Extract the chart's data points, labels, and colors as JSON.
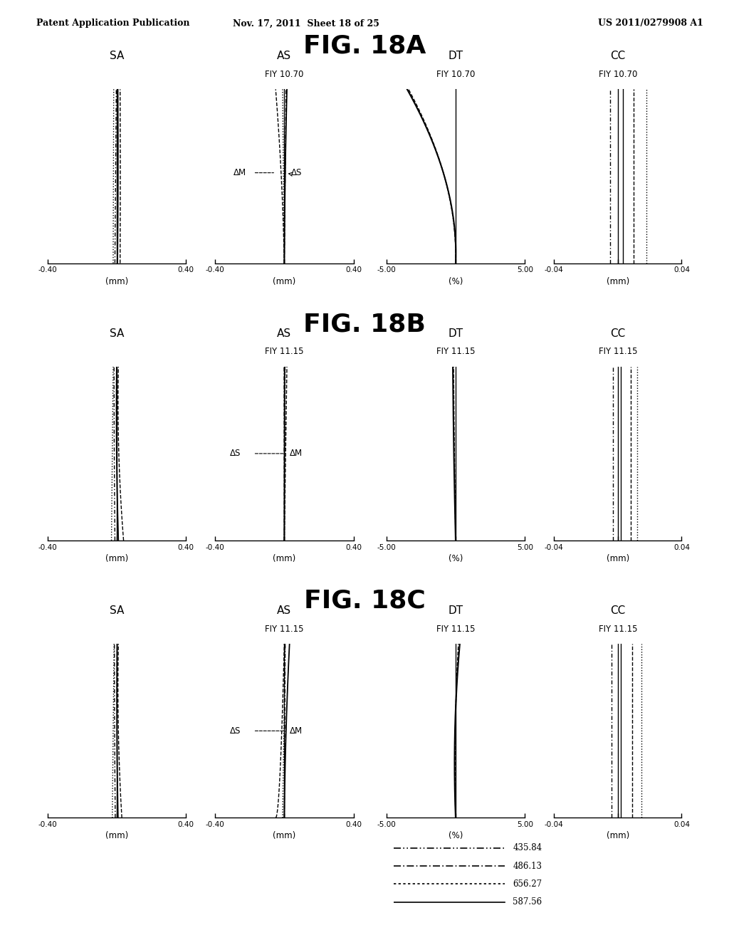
{
  "header_left": "Patent Application Publication",
  "header_mid": "Nov. 17, 2011  Sheet 18 of 25",
  "header_right": "US 2011/0279908 A1",
  "figures": [
    {
      "title": "FIG. 18A",
      "fiy": "10.70",
      "sa_has_fiy": false,
      "ann_18a": true
    },
    {
      "title": "FIG. 18B",
      "fiy": "11.15",
      "sa_has_fiy": false,
      "ann_18a": false
    },
    {
      "title": "FIG. 18C",
      "fiy": "11.15",
      "sa_has_fiy": false,
      "ann_18a": false
    }
  ],
  "panel_types": [
    "SA",
    "AS",
    "DT",
    "CC"
  ],
  "xlims": {
    "SA": [
      -0.4,
      0.4
    ],
    "AS": [
      -0.4,
      0.4
    ],
    "DT": [
      -5.0,
      5.0
    ],
    "CC": [
      -0.04,
      0.04
    ]
  },
  "xlabels": {
    "SA": "(mm)",
    "AS": "(mm)",
    "DT": "(%)",
    "CC": "(mm)"
  },
  "xtick_labels": {
    "SA": [
      "-0.40",
      "0.40"
    ],
    "AS": [
      "-0.40",
      "0.40"
    ],
    "DT": [
      "-5.00",
      "5.00"
    ],
    "CC": [
      "-0.04",
      "0.04"
    ]
  },
  "legend_labels": [
    "435.84",
    "486.13",
    "656.27",
    "587.56"
  ],
  "background_color": "#ffffff"
}
